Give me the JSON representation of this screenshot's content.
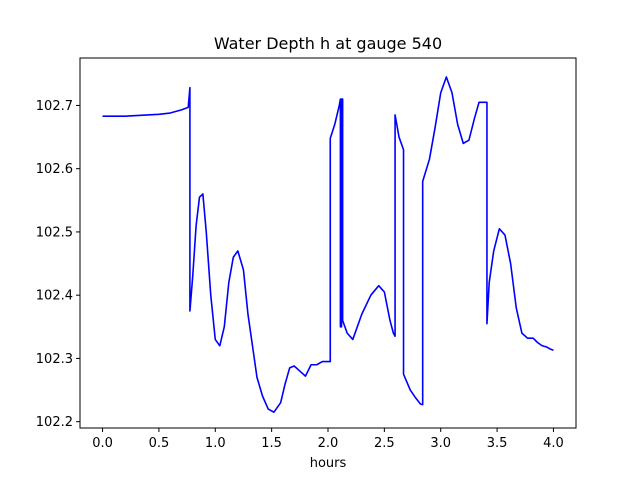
{
  "chart_data": {
    "type": "line",
    "title": "Water Depth h at gauge 540",
    "xlabel": "hours",
    "ylabel": "",
    "xlim": [
      -0.2,
      4.2
    ],
    "ylim": [
      102.19,
      102.775
    ],
    "x_ticks": [
      0.0,
      0.5,
      1.0,
      1.5,
      2.0,
      2.5,
      3.0,
      3.5,
      4.0
    ],
    "x_tick_labels": [
      "0.0",
      "0.5",
      "1.0",
      "1.5",
      "2.0",
      "2.5",
      "3.0",
      "3.5",
      "4.0"
    ],
    "y_ticks": [
      102.2,
      102.3,
      102.4,
      102.5,
      102.6,
      102.7
    ],
    "y_tick_labels": [
      "102.2",
      "102.3",
      "102.4",
      "102.5",
      "102.6",
      "102.7"
    ],
    "grid": false,
    "series": [
      {
        "color": "#0000ff",
        "x": [
          0.0,
          0.1,
          0.2,
          0.3,
          0.4,
          0.5,
          0.6,
          0.7,
          0.76,
          0.775,
          0.775,
          0.8,
          0.83,
          0.86,
          0.89,
          0.92,
          0.96,
          1.0,
          1.04,
          1.08,
          1.12,
          1.16,
          1.2,
          1.25,
          1.29,
          1.33,
          1.37,
          1.42,
          1.47,
          1.52,
          1.58,
          1.62,
          1.66,
          1.7,
          1.75,
          1.8,
          1.85,
          1.9,
          1.95,
          2.0,
          2.02,
          2.02,
          2.06,
          2.1,
          2.11,
          2.11,
          2.12,
          2.12,
          2.13,
          2.13,
          2.17,
          2.22,
          2.3,
          2.38,
          2.45,
          2.5,
          2.55,
          2.58,
          2.595,
          2.595,
          2.63,
          2.67,
          2.67,
          2.73,
          2.78,
          2.82,
          2.84,
          2.84,
          2.9,
          2.95,
          3.0,
          3.05,
          3.1,
          3.15,
          3.2,
          3.25,
          3.3,
          3.34,
          3.38,
          3.41,
          3.41,
          3.43,
          3.47,
          3.52,
          3.57,
          3.62,
          3.67,
          3.72,
          3.77,
          3.82,
          3.86,
          3.9,
          3.94,
          3.97,
          4.0
        ],
        "y": [
          102.683,
          102.683,
          102.683,
          102.684,
          102.685,
          102.686,
          102.688,
          102.693,
          102.697,
          102.728,
          102.375,
          102.43,
          102.51,
          102.555,
          102.56,
          102.5,
          102.4,
          102.33,
          102.32,
          102.35,
          102.42,
          102.46,
          102.47,
          102.44,
          102.37,
          102.32,
          102.27,
          102.24,
          102.22,
          102.215,
          102.23,
          102.26,
          102.285,
          102.288,
          102.28,
          102.272,
          102.29,
          102.29,
          102.295,
          102.295,
          102.295,
          102.648,
          102.67,
          102.7,
          102.71,
          102.35,
          102.35,
          102.71,
          102.71,
          102.36,
          102.34,
          102.33,
          102.37,
          102.4,
          102.415,
          102.405,
          102.36,
          102.34,
          102.335,
          102.685,
          102.65,
          102.63,
          102.275,
          102.25,
          102.237,
          102.228,
          102.227,
          102.58,
          102.615,
          102.665,
          102.72,
          102.745,
          102.72,
          102.67,
          102.64,
          102.645,
          102.68,
          102.705,
          102.705,
          102.705,
          102.355,
          102.42,
          102.47,
          102.505,
          102.495,
          102.45,
          102.38,
          102.34,
          102.332,
          102.332,
          102.325,
          102.32,
          102.318,
          102.315,
          102.313
        ]
      }
    ]
  }
}
